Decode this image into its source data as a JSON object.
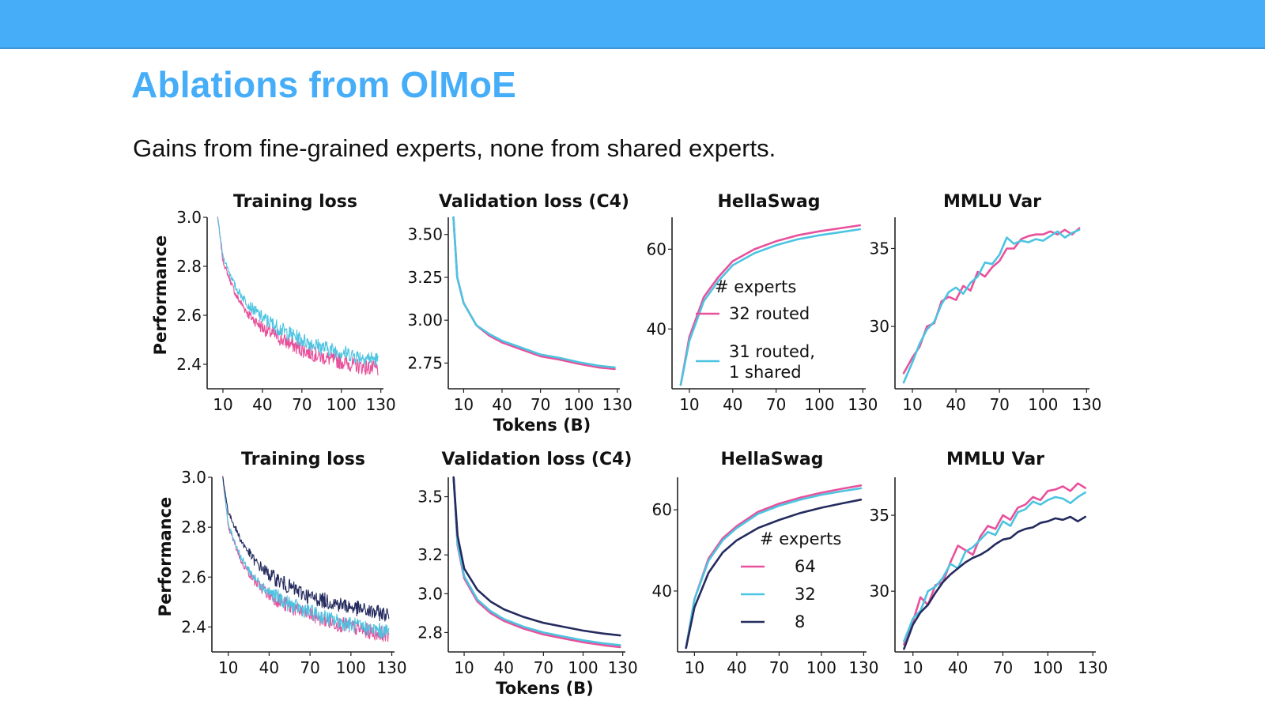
{
  "slide": {
    "title": "Ablations from OlMoE",
    "subtitle": "Gains from fine-grained experts, none from shared experts."
  },
  "colors": {
    "topbar": "#46adf8",
    "title": "#46adf8",
    "pink": "#e8519b",
    "cyan": "#4cc4e1",
    "navy": "#242b5e"
  },
  "chart_data": [
    {
      "type": "line",
      "title": "Training loss",
      "ylabel": "Performance",
      "xlabel": "",
      "x_ticks": [
        10,
        40,
        70,
        100,
        130
      ],
      "y_ticks": [
        "3.0",
        "2.8",
        "2.6",
        "2.4"
      ],
      "ylim": [
        2.3,
        3.0
      ],
      "xlim": [
        -2,
        132
      ],
      "series": [
        {
          "name": "32 routed",
          "color": "#e8519b",
          "noisy": true,
          "x": [
            6,
            10,
            20,
            30,
            40,
            55,
            70,
            85,
            100,
            115,
            128
          ],
          "y": [
            3.0,
            2.82,
            2.68,
            2.6,
            2.55,
            2.5,
            2.46,
            2.43,
            2.41,
            2.39,
            2.38
          ]
        },
        {
          "name": "31 routed, 1 shared",
          "color": "#4cc4e1",
          "noisy": true,
          "x": [
            6,
            10,
            20,
            30,
            40,
            55,
            70,
            85,
            100,
            115,
            128
          ],
          "y": [
            3.0,
            2.84,
            2.71,
            2.64,
            2.59,
            2.54,
            2.5,
            2.47,
            2.45,
            2.43,
            2.42
          ]
        }
      ]
    },
    {
      "type": "line",
      "title": "Validation loss (C4)",
      "ylabel": "",
      "xlabel": "Tokens (B)",
      "x_ticks": [
        10,
        40,
        70,
        100,
        130
      ],
      "y_ticks": [
        "3.50",
        "3.25",
        "3.00",
        "2.75"
      ],
      "ylim": [
        2.6,
        3.6
      ],
      "xlim": [
        -2,
        132
      ],
      "series": [
        {
          "name": "32 routed",
          "color": "#e8519b",
          "x": [
            2,
            5,
            10,
            20,
            30,
            40,
            55,
            70,
            85,
            100,
            115,
            128
          ],
          "y": [
            3.6,
            3.25,
            3.1,
            2.97,
            2.91,
            2.87,
            2.83,
            2.79,
            2.77,
            2.745,
            2.725,
            2.715
          ]
        },
        {
          "name": "31 routed, 1 shared",
          "color": "#4cc4e1",
          "x": [
            2,
            5,
            10,
            20,
            30,
            40,
            55,
            70,
            85,
            100,
            115,
            128
          ],
          "y": [
            3.6,
            3.25,
            3.1,
            2.97,
            2.92,
            2.88,
            2.84,
            2.8,
            2.78,
            2.755,
            2.735,
            2.725
          ]
        }
      ]
    },
    {
      "type": "line",
      "title": "HellaSwag",
      "ylabel": "",
      "xlabel": "",
      "x_ticks": [
        10,
        40,
        70,
        100,
        130
      ],
      "y_ticks": [
        "60",
        "40"
      ],
      "ylim": [
        25,
        68
      ],
      "xlim": [
        -2,
        132
      ],
      "legend": {
        "title": "# experts",
        "placement": "center-right"
      },
      "series": [
        {
          "name": "32 routed",
          "color": "#e8519b",
          "x": [
            4,
            10,
            20,
            30,
            40,
            55,
            70,
            85,
            100,
            115,
            128
          ],
          "y": [
            26,
            38,
            48,
            53,
            57,
            60,
            62,
            63.5,
            64.5,
            65.3,
            66
          ]
        },
        {
          "name": "31 routed, 1 shared",
          "color": "#4cc4e1",
          "x": [
            4,
            10,
            20,
            30,
            40,
            55,
            70,
            85,
            100,
            115,
            128
          ],
          "y": [
            26,
            37,
            47,
            52,
            56,
            59,
            61,
            62.5,
            63.5,
            64.3,
            65
          ]
        }
      ]
    },
    {
      "type": "line",
      "title": "MMLU Var",
      "ylabel": "",
      "xlabel": "",
      "x_ticks": [
        10,
        40,
        70,
        100,
        130
      ],
      "y_ticks": [
        "35",
        "30"
      ],
      "ylim": [
        26,
        37
      ],
      "xlim": [
        -2,
        132
      ],
      "series": [
        {
          "name": "32 routed",
          "color": "#e8519b",
          "x": [
            4,
            10,
            15,
            20,
            25,
            30,
            35,
            40,
            45,
            50,
            55,
            60,
            65,
            70,
            75,
            80,
            85,
            90,
            95,
            100,
            105,
            110,
            115,
            120,
            125
          ],
          "y": [
            27,
            28,
            28.7,
            30,
            30.2,
            31.6,
            31.9,
            31.7,
            32.6,
            32.3,
            33.5,
            33.2,
            33.8,
            34.2,
            35.0,
            35.0,
            35.6,
            35.8,
            35.9,
            35.9,
            36.1,
            35.9,
            36.2,
            35.9,
            36.3
          ]
        },
        {
          "name": "31 routed, 1 shared",
          "color": "#4cc4e1",
          "x": [
            4,
            10,
            15,
            20,
            25,
            30,
            35,
            40,
            45,
            50,
            55,
            60,
            65,
            70,
            75,
            80,
            85,
            90,
            95,
            100,
            105,
            110,
            115,
            120,
            125
          ],
          "y": [
            26.4,
            27.7,
            28.9,
            29.8,
            30.3,
            31.4,
            32.2,
            32.5,
            32.1,
            32.8,
            33.2,
            34.1,
            34.0,
            34.6,
            35.7,
            35.3,
            35.5,
            35.4,
            35.6,
            35.5,
            35.8,
            36.1,
            35.7,
            36.0,
            36.2
          ]
        }
      ]
    },
    {
      "type": "line",
      "title": "Training loss",
      "ylabel": "Performance",
      "xlabel": "",
      "x_ticks": [
        10,
        40,
        70,
        100,
        130
      ],
      "y_ticks": [
        "3.0",
        "2.8",
        "2.6",
        "2.4"
      ],
      "ylim": [
        2.3,
        3.0
      ],
      "xlim": [
        -2,
        132
      ],
      "series": [
        {
          "name": "64",
          "color": "#e8519b",
          "noisy": true,
          "x": [
            6,
            10,
            20,
            30,
            40,
            55,
            70,
            85,
            100,
            115,
            128
          ],
          "y": [
            3.0,
            2.8,
            2.66,
            2.58,
            2.53,
            2.48,
            2.45,
            2.42,
            2.4,
            2.38,
            2.37
          ]
        },
        {
          "name": "32",
          "color": "#4cc4e1",
          "noisy": true,
          "x": [
            6,
            10,
            20,
            30,
            40,
            55,
            70,
            85,
            100,
            115,
            128
          ],
          "y": [
            3.0,
            2.81,
            2.67,
            2.59,
            2.54,
            2.49,
            2.46,
            2.43,
            2.41,
            2.39,
            2.38
          ]
        },
        {
          "name": "8",
          "color": "#242b5e",
          "noisy": true,
          "x": [
            6,
            10,
            20,
            30,
            40,
            55,
            70,
            85,
            100,
            115,
            128
          ],
          "y": [
            3.0,
            2.86,
            2.74,
            2.66,
            2.61,
            2.56,
            2.52,
            2.5,
            2.48,
            2.46,
            2.45
          ]
        }
      ]
    },
    {
      "type": "line",
      "title": "Validation loss (C4)",
      "ylabel": "",
      "xlabel": "Tokens (B)",
      "x_ticks": [
        10,
        40,
        70,
        100,
        130
      ],
      "y_ticks": [
        "3.5",
        "3.2",
        "3.0",
        "2.8"
      ],
      "ylim": [
        2.7,
        3.6
      ],
      "xlim": [
        -2,
        132
      ],
      "series": [
        {
          "name": "64",
          "color": "#e8519b",
          "x": [
            2,
            5,
            10,
            20,
            30,
            40,
            55,
            70,
            85,
            100,
            115,
            128
          ],
          "y": [
            3.6,
            3.25,
            3.08,
            2.96,
            2.9,
            2.86,
            2.82,
            2.79,
            2.77,
            2.75,
            2.735,
            2.725
          ]
        },
        {
          "name": "32",
          "color": "#4cc4e1",
          "x": [
            2,
            5,
            10,
            20,
            30,
            40,
            55,
            70,
            85,
            100,
            115,
            128
          ],
          "y": [
            3.6,
            3.26,
            3.09,
            2.97,
            2.91,
            2.87,
            2.83,
            2.8,
            2.78,
            2.76,
            2.745,
            2.735
          ]
        },
        {
          "name": "8",
          "color": "#242b5e",
          "x": [
            2,
            5,
            10,
            20,
            30,
            40,
            55,
            70,
            85,
            100,
            115,
            128
          ],
          "y": [
            3.6,
            3.3,
            3.13,
            3.02,
            2.96,
            2.92,
            2.88,
            2.85,
            2.83,
            2.81,
            2.795,
            2.785
          ]
        }
      ]
    },
    {
      "type": "line",
      "title": "HellaSwag",
      "ylabel": "",
      "xlabel": "",
      "x_ticks": [
        10,
        40,
        70,
        100,
        130
      ],
      "y_ticks": [
        "60",
        "40"
      ],
      "ylim": [
        25,
        68
      ],
      "xlim": [
        -2,
        132
      ],
      "legend": {
        "title": "# experts",
        "placement": "center-right"
      },
      "series": [
        {
          "name": "64",
          "color": "#e8519b",
          "x": [
            4,
            10,
            20,
            30,
            40,
            55,
            70,
            85,
            100,
            115,
            128
          ],
          "y": [
            26,
            38,
            48,
            53,
            56,
            59.5,
            61.5,
            63,
            64.2,
            65.2,
            66
          ]
        },
        {
          "name": "32",
          "color": "#4cc4e1",
          "x": [
            4,
            10,
            20,
            30,
            40,
            55,
            70,
            85,
            100,
            115,
            128
          ],
          "y": [
            26,
            38,
            47.5,
            52.5,
            55.5,
            59,
            61,
            62.5,
            63.7,
            64.6,
            65.3
          ]
        },
        {
          "name": "8",
          "color": "#242b5e",
          "x": [
            4,
            10,
            20,
            30,
            40,
            55,
            70,
            85,
            100,
            115,
            128
          ],
          "y": [
            26,
            36,
            44.5,
            49.5,
            52.5,
            55.5,
            57.5,
            59.2,
            60.5,
            61.6,
            62.5
          ]
        }
      ]
    },
    {
      "type": "line",
      "title": "MMLU Var",
      "ylabel": "",
      "xlabel": "",
      "x_ticks": [
        10,
        40,
        70,
        100,
        130
      ],
      "y_ticks": [
        "35",
        "30"
      ],
      "ylim": [
        26,
        37.5
      ],
      "xlim": [
        -2,
        132
      ],
      "series": [
        {
          "name": "64",
          "color": "#e8519b",
          "x": [
            4,
            10,
            15,
            20,
            25,
            30,
            35,
            40,
            45,
            50,
            55,
            60,
            65,
            70,
            75,
            80,
            85,
            90,
            95,
            100,
            105,
            110,
            115,
            120,
            125
          ],
          "y": [
            26.5,
            28,
            29.6,
            29.1,
            30.4,
            30.6,
            31.9,
            33.0,
            32.7,
            32.4,
            33.6,
            34.3,
            34.1,
            35.0,
            34.7,
            35.5,
            35.7,
            36.2,
            36.0,
            36.6,
            36.7,
            36.9,
            36.6,
            37.1,
            36.8
          ]
        },
        {
          "name": "32",
          "color": "#4cc4e1",
          "x": [
            4,
            10,
            15,
            20,
            25,
            30,
            35,
            40,
            45,
            50,
            55,
            60,
            65,
            70,
            75,
            80,
            85,
            90,
            95,
            100,
            105,
            110,
            115,
            120,
            125
          ],
          "y": [
            26.7,
            28.2,
            28.7,
            30.0,
            30.3,
            30.9,
            31.8,
            31.5,
            32.6,
            32.9,
            33.4,
            33.9,
            33.7,
            34.6,
            34.3,
            35.2,
            35.4,
            35.9,
            35.7,
            36.0,
            36.2,
            36.1,
            35.8,
            36.2,
            36.5
          ]
        },
        {
          "name": "8",
          "color": "#242b5e",
          "x": [
            4,
            10,
            15,
            20,
            25,
            30,
            35,
            40,
            45,
            50,
            55,
            60,
            65,
            70,
            75,
            80,
            85,
            90,
            95,
            100,
            105,
            110,
            115,
            120,
            125
          ],
          "y": [
            26.2,
            27.8,
            28.6,
            29.1,
            29.9,
            30.6,
            31.1,
            31.5,
            31.9,
            32.2,
            32.4,
            32.7,
            33.1,
            33.4,
            33.5,
            33.9,
            34.1,
            34.2,
            34.5,
            34.6,
            34.8,
            34.7,
            34.9,
            34.6,
            34.9
          ]
        }
      ]
    }
  ]
}
